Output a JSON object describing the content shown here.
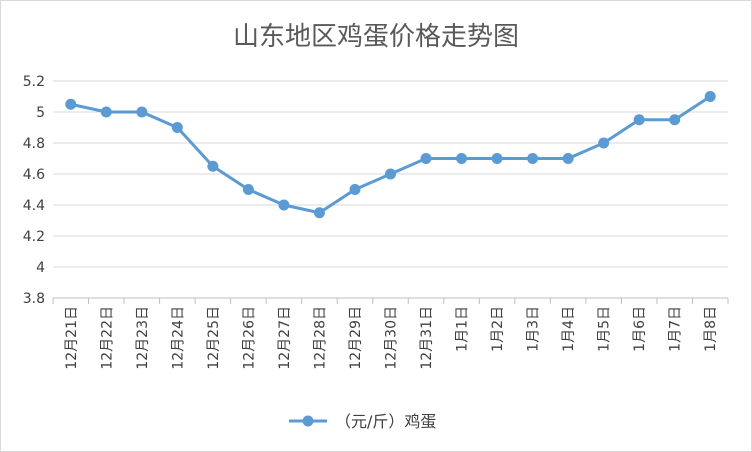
{
  "chart_data": {
    "type": "line",
    "title": "山东地区鸡蛋价格走势图",
    "xlabel": "",
    "ylabel": "",
    "categories": [
      "12月21日",
      "12月22日",
      "12月23日",
      "12月24日",
      "12月25日",
      "12月26日",
      "12月27日",
      "12月28日",
      "12月29日",
      "12月30日",
      "12月31日",
      "1月1日",
      "1月2日",
      "1月3日",
      "1月4日",
      "1月5日",
      "1月6日",
      "1月7日",
      "1月8日"
    ],
    "series": [
      {
        "name": "（元/斤）鸡蛋",
        "color": "#5b9bd5",
        "values": [
          5.05,
          5.0,
          5.0,
          4.9,
          4.65,
          4.5,
          4.4,
          4.35,
          4.5,
          4.6,
          4.7,
          4.7,
          4.7,
          4.7,
          4.7,
          4.8,
          4.95,
          4.95,
          5.1
        ]
      }
    ],
    "ylim": [
      3.8,
      5.2
    ],
    "yticks": [
      "3.8",
      "4",
      "4.2",
      "4.4",
      "4.6",
      "4.8",
      "5",
      "5.2"
    ],
    "grid": true,
    "legend_position": "bottom"
  }
}
